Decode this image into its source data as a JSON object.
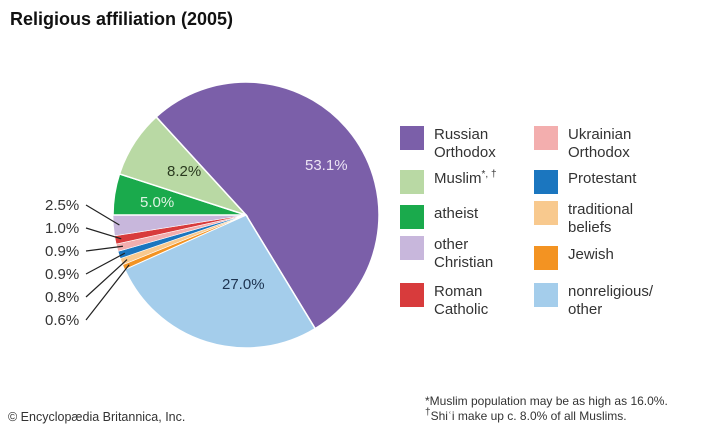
{
  "chart_data": {
    "type": "pie",
    "title": "Religious affiliation (2005)",
    "slices": [
      {
        "name": "Russian Orthodox",
        "value": 53.1,
        "label": "53.1%",
        "color": "#7b5fa9"
      },
      {
        "name": "nonreligious/ other",
        "value": 27.0,
        "label": "27.0%",
        "color": "#a4cdeb"
      },
      {
        "name": "Jewish",
        "value": 0.6,
        "label": "0.6%",
        "color": "#f39322"
      },
      {
        "name": "traditional beliefs",
        "value": 0.8,
        "label": "0.8%",
        "color": "#f8c98e"
      },
      {
        "name": "Protestant",
        "value": 0.9,
        "label": "0.9%",
        "color": "#1b76bf"
      },
      {
        "name": "Ukrainian Orthodox",
        "value": 0.9,
        "label": "0.9%",
        "color": "#f3aeae"
      },
      {
        "name": "Roman Catholic",
        "value": 1.0,
        "label": "1.0%",
        "color": "#d83b3c"
      },
      {
        "name": "other Christian",
        "value": 2.5,
        "label": "2.5%",
        "color": "#c8b7dc"
      },
      {
        "name": "atheist",
        "value": 5.0,
        "label": "5.0%",
        "color": "#1aaa4c"
      },
      {
        "name": "Muslim",
        "value": 8.2,
        "label": "8.2%",
        "color": "#b9d9a4"
      }
    ],
    "legend_placement": "right"
  },
  "legend": [
    {
      "label": "Russian\nOrthodox",
      "color": "#7b5fa9"
    },
    {
      "label": "Muslim",
      "sup": "*, †",
      "color": "#b9d9a4"
    },
    {
      "label": "atheist",
      "color": "#1aaa4c"
    },
    {
      "label": "other\nChristian",
      "color": "#c8b7dc"
    },
    {
      "label": "Roman\nCatholic",
      "color": "#d83b3c"
    },
    {
      "label": "Ukrainian\nOrthodox",
      "color": "#f3aeae"
    },
    {
      "label": "Protestant",
      "color": "#1b76bf"
    },
    {
      "label": "traditional\nbeliefs",
      "color": "#f8c98e"
    },
    {
      "label": "Jewish",
      "color": "#f39322"
    },
    {
      "label": "nonreligious/\nother",
      "color": "#a4cdeb"
    }
  ],
  "notes": {
    "note1": "*Muslim population may be as high as 16.0%.",
    "note2_mark": "†",
    "note2": "Shiʿi make up c. 8.0% of all Muslims."
  },
  "credit": "© Encyclopædia Britannica, Inc."
}
